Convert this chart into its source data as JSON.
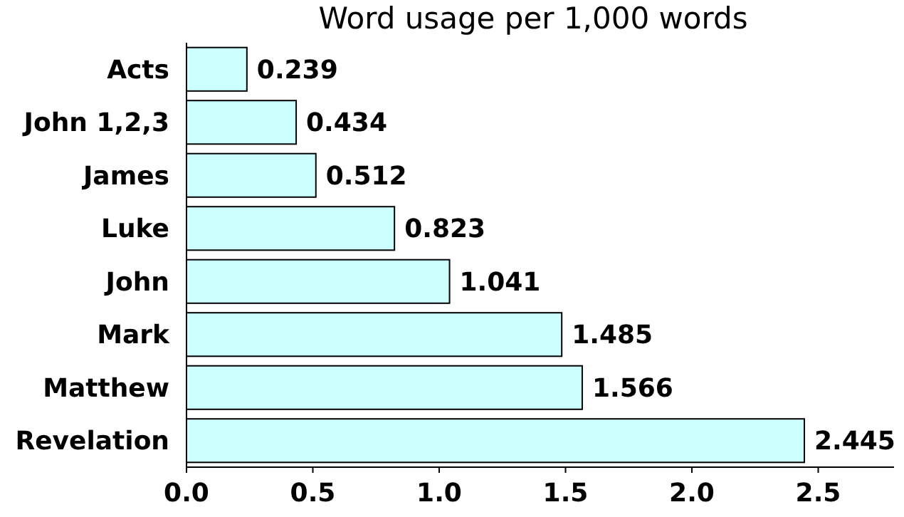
{
  "chart_data": {
    "type": "bar",
    "orientation": "horizontal",
    "title": "Word usage per 1,000 words",
    "categories": [
      "Acts",
      "John 1,2,3",
      "James",
      "Luke",
      "John",
      "Mark",
      "Matthew",
      "Revelation"
    ],
    "values": [
      0.239,
      0.434,
      0.512,
      0.823,
      1.041,
      1.485,
      1.566,
      2.445
    ],
    "color": "#ccffff",
    "xlim": [
      0,
      2.8
    ],
    "xticks": [
      {
        "value": 0,
        "label": "0.0"
      },
      {
        "value": 0.5,
        "label": "0.5"
      },
      {
        "value": 1,
        "label": "1.0"
      },
      {
        "value": 1.5,
        "label": "1.5"
      },
      {
        "value": 2,
        "label": "2.0"
      },
      {
        "value": 2.5,
        "label": "2.5"
      }
    ],
    "data_labels": true,
    "grid": false
  }
}
